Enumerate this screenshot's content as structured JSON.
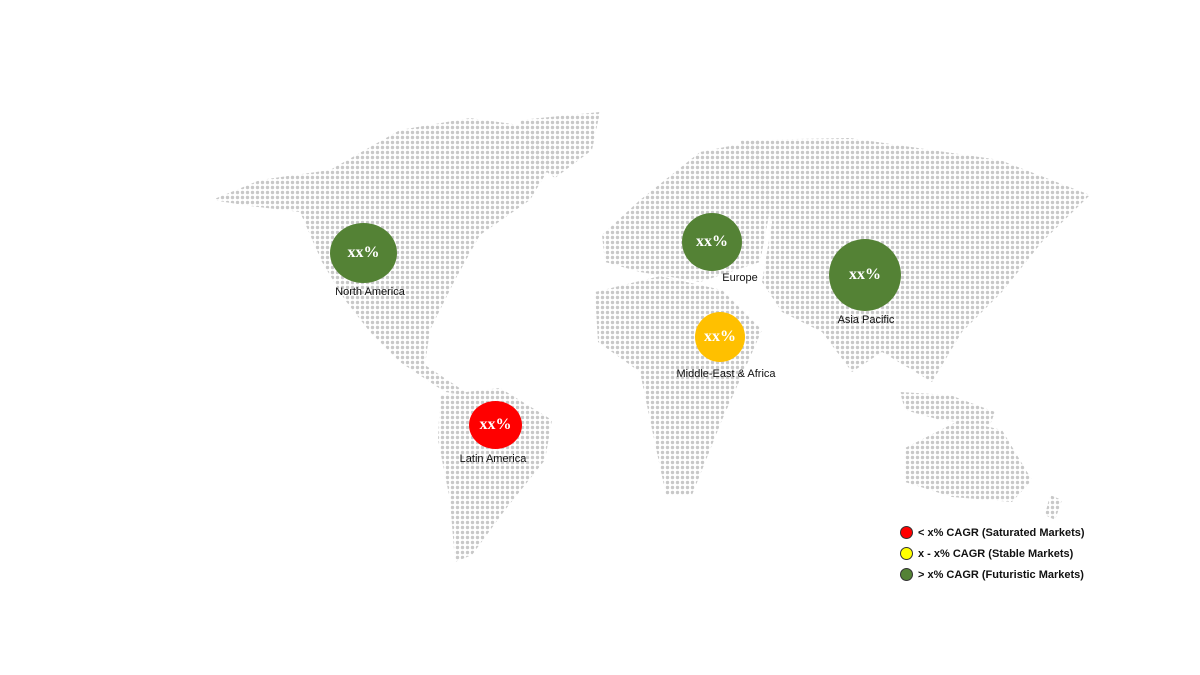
{
  "colors": {
    "green": "#548235",
    "red": "#ff0000",
    "amber": "#ffc000",
    "yellow": "#ffff00",
    "map_dots": "#c8c8c8"
  },
  "regions": [
    {
      "name": "North America",
      "value": "xx%",
      "category": "futuristic"
    },
    {
      "name": "Europe",
      "value": "xx%",
      "category": "futuristic"
    },
    {
      "name": "Asia Pacific",
      "value": "xx%",
      "category": "futuristic"
    },
    {
      "name": "Middle-East & Africa",
      "value": "xx%",
      "category": "stable"
    },
    {
      "name": "Latin America",
      "value": "xx%",
      "category": "saturated"
    }
  ],
  "legend": [
    {
      "label": "< x% CAGR (Saturated Markets)",
      "color": "#ff0000"
    },
    {
      "label": "x - x% CAGR (Stable Markets)",
      "color": "#ffff00"
    },
    {
      "label": "> x% CAGR (Futuristic Markets)",
      "color": "#548235"
    }
  ]
}
